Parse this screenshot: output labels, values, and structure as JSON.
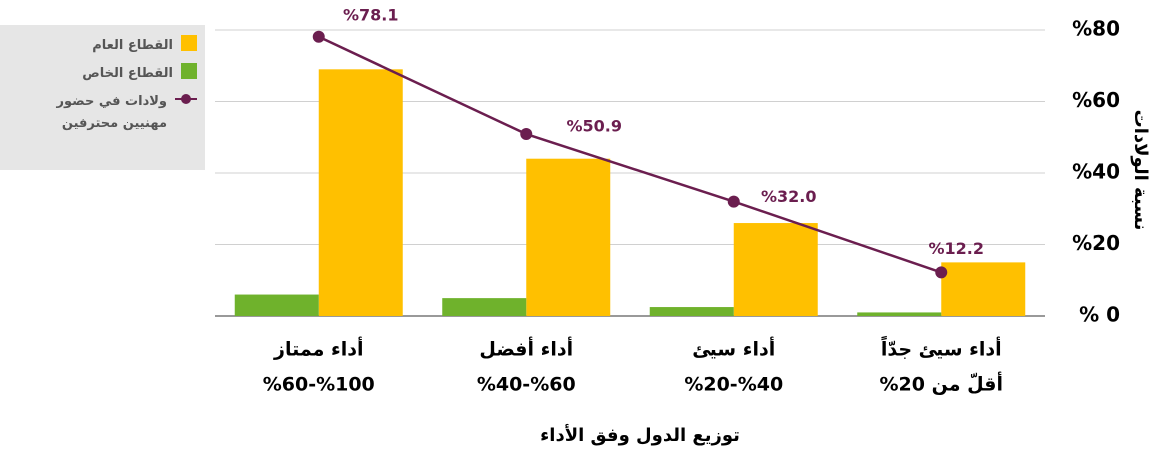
{
  "chart_data": {
    "type": "bar_line",
    "x_label": "توزيع الدول وفق الأداء",
    "y_label": "نسبة الولادات",
    "categories": [
      "أداء ممتاز",
      "أداء أفضل",
      "أداء سيئ",
      "أداء سيئ جدّاً"
    ],
    "category_ranges": [
      "%100-%60",
      "%60-%40",
      "%40-%20",
      "أقلّ من 20%"
    ],
    "series": [
      {
        "name": "القطاع العام",
        "type": "bar",
        "color": "#ffc000",
        "values": [
          69,
          44,
          26,
          15
        ]
      },
      {
        "name": "القطاع الخاص",
        "type": "bar",
        "color": "#6fb22c",
        "values": [
          6,
          5,
          2.5,
          1
        ]
      },
      {
        "name": "ولادات في حضور مهنيين محترفين",
        "type": "line",
        "color": "#6b1e4f",
        "values": [
          78.1,
          50.9,
          32.0,
          12.2
        ],
        "value_labels": [
          "%78.1",
          "%50.9",
          "%32.0",
          "%12.2"
        ]
      }
    ],
    "ylim": [
      0,
      80
    ],
    "yticks": [
      {
        "value": 0,
        "label": "% 0"
      },
      {
        "value": 20,
        "label": "%20"
      },
      {
        "value": 40,
        "label": "%40"
      },
      {
        "value": 60,
        "label": "%60"
      },
      {
        "value": 80,
        "label": "%80"
      }
    ],
    "grid": true,
    "legend": "top-left"
  }
}
